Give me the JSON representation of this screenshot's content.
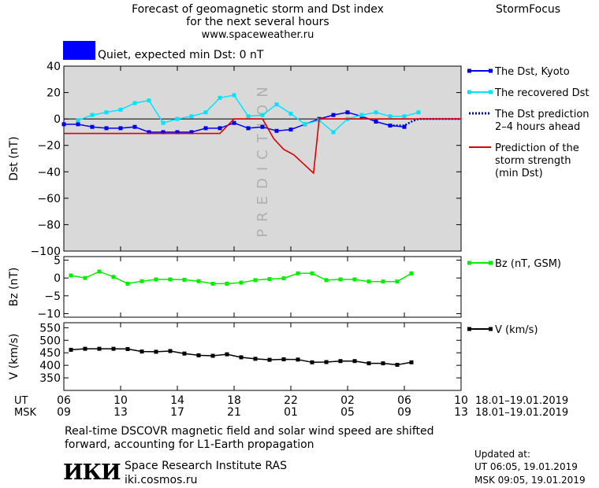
{
  "header": {
    "title_line1": "Forecast of geomagnetic storm and Dst index",
    "title_line2": "for the next several hours",
    "title_line3": "www.spaceweather.ru",
    "brand": "StormFocus",
    "quiet_text": "Quiet, expected min Dst: 0 nT",
    "quiet_color": "#0000ff"
  },
  "footer": {
    "note_line1": "Real-time DSCOVR magnetic field and solar wind speed are shifted",
    "note_line2": "forward, accounting for L1-Earth propagation",
    "institute": "Space Research Institute RAS",
    "website": "iki.cosmos.ru",
    "logo_text": "ИКИ",
    "updated_label": "Updated at:",
    "updated_ut": "UT   06:05, 19.01.2019",
    "updated_msk": "MSK 09:05, 19.01.2019"
  },
  "chart_data": [
    {
      "panel": "dst",
      "type": "line",
      "ylabel": "Dst (nT)",
      "ylim": [
        -100,
        40
      ],
      "yticks": [
        40,
        20,
        0,
        -20,
        -40,
        -60,
        -80,
        -100
      ],
      "shaded_region_label": "PREDICTION",
      "shaded_region_x": [
        6,
        10
      ],
      "legend": [
        {
          "name": "The Dst, Kyoto",
          "color": "#0000ee",
          "style": "solid-square"
        },
        {
          "name": "The recovered Dst",
          "color": "#00e5ff",
          "style": "solid-square"
        },
        {
          "name": "The Dst prediction 2-4 hours ahead",
          "color": "#0000cc",
          "style": "dotted"
        },
        {
          "name": "Prediction of the storm strength (min Dst)",
          "color": "#dd0000",
          "style": "solid"
        }
      ],
      "legend_lines": [
        [
          "The Dst, Kyoto"
        ],
        [
          "The recovered Dst"
        ],
        [
          "The Dst prediction",
          "2–4 hours ahead"
        ],
        [
          "Prediction of the",
          "storm strength",
          "(min Dst)"
        ]
      ],
      "series": [
        {
          "name": "The Dst, Kyoto",
          "color": "#0000ee",
          "x": [
            6,
            7,
            8,
            9,
            10,
            11,
            12,
            13,
            14,
            15,
            16,
            17,
            18,
            19,
            20,
            21,
            22,
            23,
            24,
            25,
            26,
            27,
            28,
            29,
            30
          ],
          "y": [
            -4,
            -4,
            -6,
            -7,
            -7,
            -6,
            -10,
            -10,
            -10,
            -10,
            -7,
            -7,
            -3,
            -7,
            -6,
            -9,
            -8,
            -4,
            0,
            3,
            5,
            2,
            -2,
            -5,
            -6
          ]
        },
        {
          "name": "The recovered Dst",
          "color": "#00e5ff",
          "x": [
            7,
            8,
            9,
            10,
            11,
            12,
            13,
            14,
            15,
            16,
            17,
            18,
            19,
            20,
            21,
            22,
            23,
            24,
            25,
            26,
            27,
            28,
            29,
            30,
            31
          ],
          "y": [
            -1,
            3,
            5,
            7,
            12,
            14,
            -3,
            0,
            2,
            5,
            16,
            18,
            2,
            3,
            11,
            4,
            -4,
            -1,
            -10,
            0,
            3,
            5,
            2,
            2,
            5
          ]
        },
        {
          "name": "The Dst prediction 2-4 hours ahead",
          "color": "#0000cc",
          "dashed": true,
          "x": [
            29.2,
            30,
            30.5,
            31,
            32,
            33,
            34
          ],
          "y": [
            -5,
            -5,
            -2,
            0,
            0,
            0,
            0
          ]
        },
        {
          "name": "Prediction of the storm strength (min Dst)",
          "color": "#dd0000",
          "x": [
            6,
            7,
            8,
            9,
            10,
            11,
            12,
            13,
            14,
            15,
            16,
            17,
            18,
            19,
            20,
            20.8,
            21.5,
            22.2,
            23,
            23.6,
            24,
            25,
            26,
            27,
            28,
            29,
            30,
            31,
            32,
            33,
            34
          ],
          "y": [
            -11,
            -11,
            -11,
            -11,
            -11,
            -11,
            -11,
            -11,
            -11,
            -11,
            -11,
            -11,
            0,
            0,
            0,
            -15,
            -23,
            -27,
            -35,
            -41,
            0,
            0,
            0,
            0,
            0,
            0,
            0,
            0,
            0,
            0,
            0
          ]
        }
      ]
    },
    {
      "panel": "bz",
      "type": "line",
      "ylabel": "Bz (nT)",
      "ylim": [
        -11,
        6
      ],
      "yticks": [
        5,
        0,
        -5,
        -10
      ],
      "legend": [
        {
          "name": "Bz (nT, GSM)",
          "color": "#00ee00"
        }
      ],
      "series": [
        {
          "name": "Bz (nT, GSM)",
          "color": "#00ee00",
          "x": [
            6.5,
            7.5,
            8.5,
            9.5,
            10.5,
            11.5,
            12.5,
            13.5,
            14.5,
            15.5,
            16.5,
            17.5,
            18.5,
            19.5,
            20.5,
            21.5,
            22.5,
            23.5,
            24.5,
            25.5,
            26.5,
            27.5,
            28.5,
            29.5,
            30.5
          ],
          "y": [
            0.7,
            0.0,
            1.8,
            0.3,
            -1.6,
            -0.9,
            -0.4,
            -0.4,
            -0.5,
            -0.9,
            -1.6,
            -1.6,
            -1.3,
            -0.6,
            -0.3,
            -0.1,
            1.3,
            1.3,
            -0.6,
            -0.4,
            -0.4,
            -1.0,
            -1.0,
            -1.0,
            1.3
          ]
        }
      ]
    },
    {
      "panel": "v",
      "type": "line",
      "ylabel": "V (km/s)",
      "ylim": [
        300,
        570
      ],
      "yticks": [
        550,
        500,
        450,
        400,
        350
      ],
      "legend": [
        {
          "name": "V (km/s)",
          "color": "#000000"
        }
      ],
      "series": [
        {
          "name": "V (km/s)",
          "color": "#000000",
          "x": [
            6.5,
            7.5,
            8.5,
            9.5,
            10.5,
            11.5,
            12.5,
            13.5,
            14.5,
            15.5,
            16.5,
            17.5,
            18.5,
            19.5,
            20.5,
            21.5,
            22.5,
            23.5,
            24.5,
            25.5,
            26.5,
            27.5,
            28.5,
            29.5,
            30.5
          ],
          "y": [
            462,
            466,
            466,
            466,
            465,
            455,
            454,
            457,
            447,
            440,
            438,
            444,
            432,
            426,
            422,
            424,
            423,
            412,
            413,
            417,
            417,
            408,
            408,
            402,
            412
          ]
        }
      ]
    }
  ],
  "x_axis": {
    "ut_label": "UT",
    "msk_label": "MSK",
    "ut_ticks": [
      "06",
      "10",
      "14",
      "18",
      "22",
      "02",
      "06",
      "10"
    ],
    "msk_ticks": [
      "09",
      "13",
      "17",
      "21",
      "01",
      "05",
      "09",
      "13"
    ],
    "date_range_ut": "18.01–19.01.2019",
    "date_range_msk": "18.01–19.01.2019",
    "range": [
      6,
      34
    ]
  }
}
